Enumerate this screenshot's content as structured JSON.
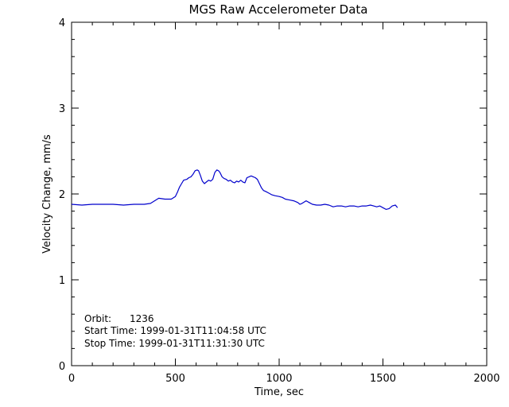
{
  "chart_data": {
    "type": "line",
    "title": "MGS Raw Accelerometer Data",
    "xlabel": "Time, sec",
    "ylabel": "Velocity Change, mm/s",
    "xlim": [
      0,
      2000
    ],
    "ylim": [
      0,
      4
    ],
    "x_ticks": [
      0,
      500,
      1000,
      1500,
      2000
    ],
    "y_ticks": [
      0,
      1,
      2,
      3,
      4
    ],
    "x_minor_step": 100,
    "y_minor_step": 0.2,
    "grid": false,
    "line_color": "#0000cc",
    "series": [
      {
        "x": [
          0,
          50,
          100,
          150,
          200,
          250,
          300,
          350,
          380,
          400,
          420,
          450,
          480,
          500,
          510,
          520,
          530,
          540,
          555,
          565,
          575,
          585,
          595,
          605,
          612,
          620,
          630,
          640,
          650,
          660,
          670,
          680,
          690,
          700,
          708,
          715,
          725,
          735,
          745,
          755,
          765,
          775,
          785,
          795,
          805,
          815,
          825,
          835,
          845,
          855,
          865,
          875,
          885,
          895,
          905,
          915,
          925,
          935,
          950,
          965,
          980,
          1000,
          1015,
          1030,
          1050,
          1070,
          1090,
          1100,
          1110,
          1130,
          1145,
          1160,
          1180,
          1200,
          1220,
          1240,
          1260,
          1280,
          1300,
          1320,
          1340,
          1360,
          1380,
          1400,
          1420,
          1440,
          1455,
          1470,
          1485,
          1500,
          1515,
          1530,
          1545,
          1560,
          1570
        ],
        "y": [
          1.88,
          1.87,
          1.88,
          1.88,
          1.88,
          1.87,
          1.88,
          1.88,
          1.89,
          1.92,
          1.95,
          1.94,
          1.94,
          1.97,
          2.02,
          2.08,
          2.12,
          2.16,
          2.17,
          2.19,
          2.2,
          2.23,
          2.27,
          2.28,
          2.27,
          2.22,
          2.15,
          2.12,
          2.14,
          2.16,
          2.15,
          2.17,
          2.25,
          2.28,
          2.27,
          2.25,
          2.2,
          2.18,
          2.17,
          2.15,
          2.16,
          2.14,
          2.13,
          2.15,
          2.14,
          2.16,
          2.14,
          2.13,
          2.19,
          2.2,
          2.21,
          2.2,
          2.19,
          2.17,
          2.12,
          2.07,
          2.04,
          2.03,
          2.01,
          1.99,
          1.98,
          1.97,
          1.96,
          1.94,
          1.93,
          1.92,
          1.9,
          1.88,
          1.89,
          1.92,
          1.9,
          1.88,
          1.87,
          1.87,
          1.88,
          1.87,
          1.85,
          1.86,
          1.86,
          1.85,
          1.86,
          1.86,
          1.85,
          1.86,
          1.86,
          1.87,
          1.86,
          1.85,
          1.86,
          1.84,
          1.82,
          1.83,
          1.86,
          1.87,
          1.84
        ]
      }
    ],
    "annotations": [
      "Orbit:      1236",
      "Start Time: 1999-01-31T11:04:58 UTC",
      "Stop Time: 1999-01-31T11:31:30 UTC"
    ]
  }
}
